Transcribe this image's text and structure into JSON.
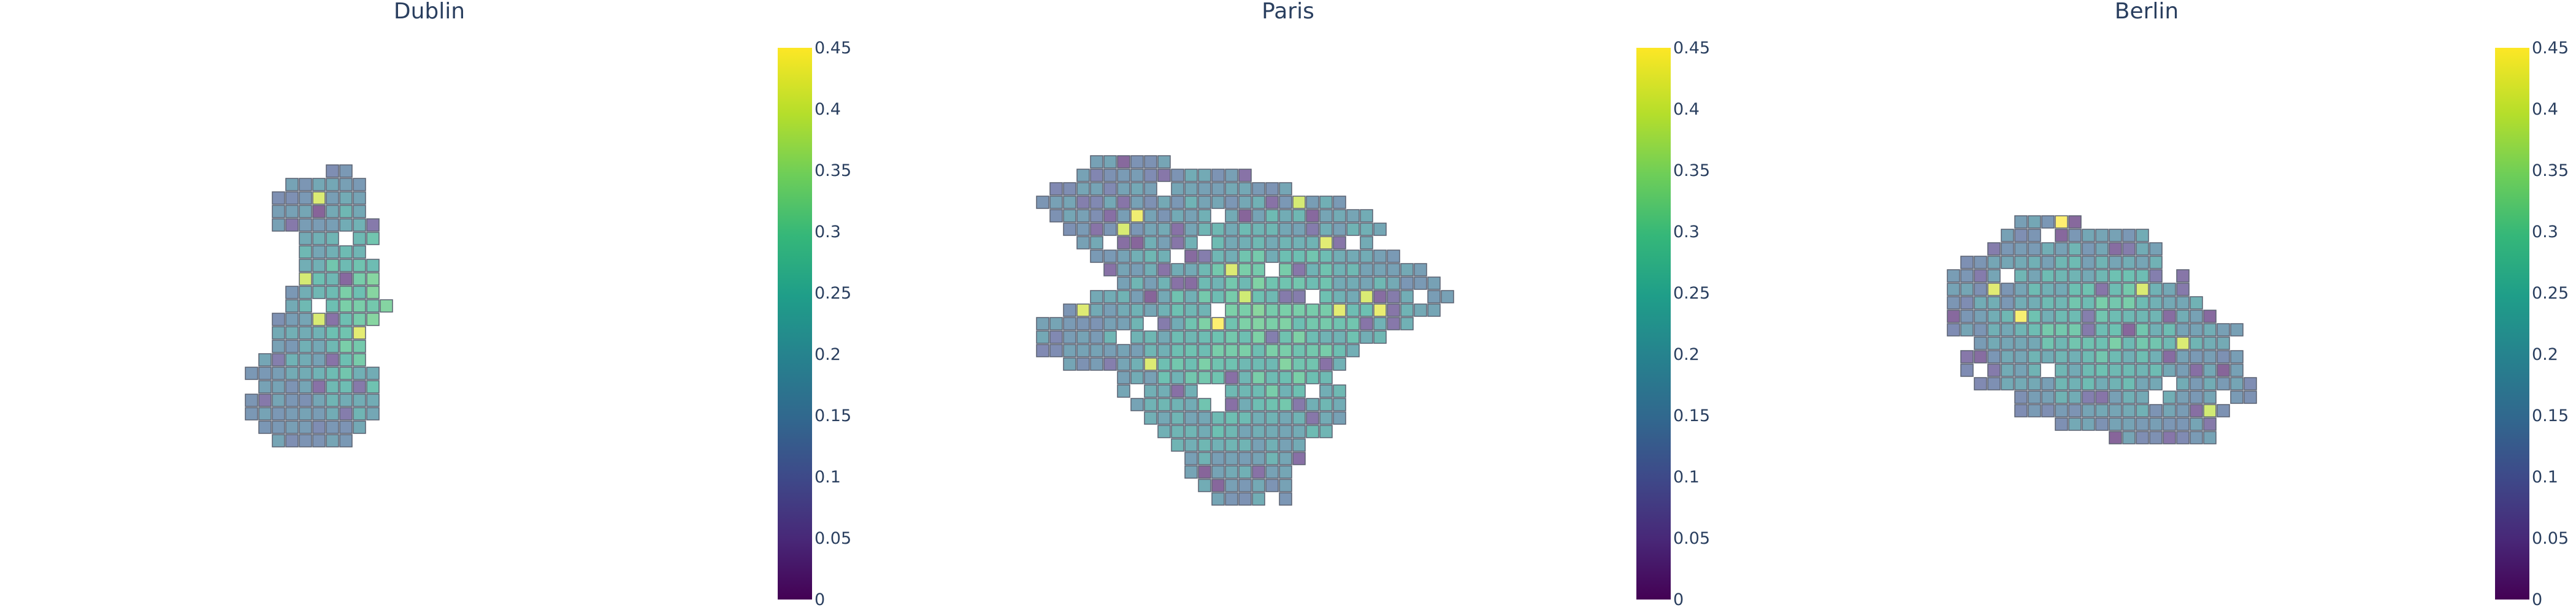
{
  "chart_data": {
    "type": "heatmap",
    "colorscale": "viridis",
    "cell_opacity": 0.65,
    "colorbar": {
      "range": [
        0,
        0.45
      ],
      "ticks": [
        "0",
        "0.05",
        "0.1",
        "0.15",
        "0.2",
        "0.25",
        "0.3",
        "0.35",
        "0.4",
        "0.45"
      ],
      "tick_values": [
        0,
        0.05,
        0.1,
        0.15,
        0.2,
        0.25,
        0.3,
        0.35,
        0.4,
        0.45
      ]
    },
    "panels": [
      {
        "title": "Dublin",
        "seed": 11,
        "shape": [
          {
            "y": 0.09,
            "x0": 0.3,
            "x1": 0.37
          },
          {
            "y": 0.13,
            "x0": 0.21,
            "x1": 0.46
          },
          {
            "y": 0.17,
            "x0": 0.11,
            "x1": 0.5
          },
          {
            "y": 0.21,
            "x0": 0.09,
            "x1": 0.47
          },
          {
            "y": 0.25,
            "x0": 0.1,
            "x1": 0.54
          },
          {
            "y": 0.3,
            "x0": 0.25,
            "x1": 0.49
          },
          {
            "y": 0.34,
            "x0": 0.25,
            "x1": 0.53
          },
          {
            "y": 0.38,
            "x0": 0.22,
            "x1": 0.55
          },
          {
            "y": 0.43,
            "x0": 0.18,
            "x1": 0.53
          },
          {
            "y": 0.47,
            "x0": 0.16,
            "x1": 0.58
          },
          {
            "y": 0.52,
            "x0": 0.13,
            "x1": 0.56
          },
          {
            "y": 0.58,
            "x0": 0.1,
            "x1": 0.46
          },
          {
            "y": 0.64,
            "x0": 0.06,
            "x1": 0.48
          },
          {
            "y": 0.69,
            "x0": 0.02,
            "x1": 0.5
          },
          {
            "y": 0.74,
            "x0": 0.0,
            "x1": 0.53
          },
          {
            "y": 0.79,
            "x0": 0.01,
            "x1": 0.49
          },
          {
            "y": 0.84,
            "x0": 0.05,
            "x1": 0.47
          },
          {
            "y": 0.88,
            "x0": 0.13,
            "x1": 0.42
          },
          {
            "y": 0.92,
            "x0": 0.18,
            "x1": 0.38
          }
        ]
      },
      {
        "title": "Paris",
        "seed": 29,
        "shape": [
          {
            "y": 0.06,
            "x0": 0.16,
            "x1": 0.27
          },
          {
            "y": 0.1,
            "x0": 0.08,
            "x1": 0.4
          },
          {
            "y": 0.14,
            "x0": 0.03,
            "x1": 0.56
          },
          {
            "y": 0.18,
            "x0": 0.02,
            "x1": 0.68
          },
          {
            "y": 0.22,
            "x0": 0.04,
            "x1": 0.77
          },
          {
            "y": 0.26,
            "x0": 0.06,
            "x1": 0.8
          },
          {
            "y": 0.3,
            "x0": 0.1,
            "x1": 0.78
          },
          {
            "y": 0.34,
            "x0": 0.14,
            "x1": 0.86
          },
          {
            "y": 0.38,
            "x0": 0.18,
            "x1": 0.92
          },
          {
            "y": 0.42,
            "x0": 0.12,
            "x1": 0.98
          },
          {
            "y": 0.46,
            "x0": 0.05,
            "x1": 0.92
          },
          {
            "y": 0.5,
            "x0": 0.0,
            "x1": 0.8
          },
          {
            "y": 0.54,
            "x0": 0.01,
            "x1": 0.74
          },
          {
            "y": 0.58,
            "x0": 0.03,
            "x1": 0.7
          },
          {
            "y": 0.62,
            "x0": 0.18,
            "x1": 0.68
          },
          {
            "y": 0.66,
            "x0": 0.22,
            "x1": 0.72
          },
          {
            "y": 0.7,
            "x0": 0.24,
            "x1": 0.7
          },
          {
            "y": 0.74,
            "x0": 0.26,
            "x1": 0.66
          },
          {
            "y": 0.78,
            "x0": 0.3,
            "x1": 0.62
          },
          {
            "y": 0.82,
            "x0": 0.32,
            "x1": 0.6
          },
          {
            "y": 0.86,
            "x0": 0.36,
            "x1": 0.58
          },
          {
            "y": 0.9,
            "x0": 0.4,
            "x1": 0.56
          },
          {
            "y": 0.94,
            "x0": 0.44,
            "x1": 0.54
          }
        ]
      },
      {
        "title": "Berlin",
        "seed": 47,
        "shape": [
          {
            "y": 0.05,
            "x0": 0.22,
            "x1": 0.3
          },
          {
            "y": 0.12,
            "x0": 0.16,
            "x1": 0.58
          },
          {
            "y": 0.2,
            "x0": 0.1,
            "x1": 0.68
          },
          {
            "y": 0.28,
            "x0": 0.04,
            "x1": 0.74
          },
          {
            "y": 0.36,
            "x0": 0.02,
            "x1": 0.82
          },
          {
            "y": 0.44,
            "x0": 0.0,
            "x1": 0.88
          },
          {
            "y": 0.52,
            "x0": 0.0,
            "x1": 0.92
          },
          {
            "y": 0.6,
            "x0": 0.02,
            "x1": 0.9
          },
          {
            "y": 0.68,
            "x0": 0.06,
            "x1": 0.94
          },
          {
            "y": 0.76,
            "x0": 0.12,
            "x1": 1.0
          },
          {
            "y": 0.84,
            "x0": 0.2,
            "x1": 0.96
          },
          {
            "y": 0.91,
            "x0": 0.38,
            "x1": 0.88
          },
          {
            "y": 0.97,
            "x0": 0.56,
            "x1": 0.84
          }
        ]
      }
    ]
  }
}
